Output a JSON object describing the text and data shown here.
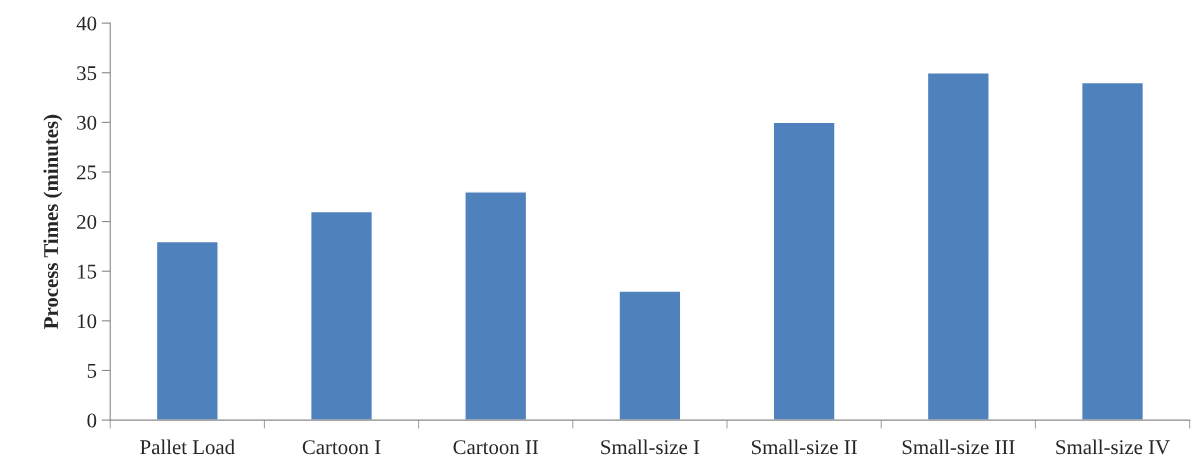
{
  "chart_data": {
    "type": "bar",
    "ylabel": "Process Times (minutes)",
    "categories": [
      "Pallet Load",
      "Cartoon I",
      "Cartoon II",
      "Small-size I",
      "Small-size II",
      "Small-size III",
      "Small-size IV"
    ],
    "values": [
      18,
      21,
      23,
      13,
      30,
      35,
      34
    ],
    "color": "#4f81bd",
    "ylim": [
      0,
      40
    ],
    "yticks": [
      0,
      5,
      10,
      15,
      20,
      25,
      30,
      35,
      40
    ],
    "grid": false,
    "legend": false
  }
}
